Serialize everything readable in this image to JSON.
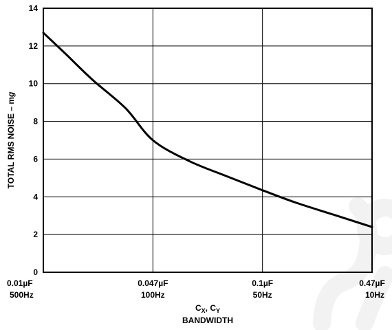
{
  "chart_data": {
    "type": "line",
    "ylabel": "TOTAL RMS NOISE – mg",
    "ylabel_main": "TOTAL RMS NOISE – m",
    "ylabel_unit": "g",
    "xlabel_line1": "C",
    "xlabel_sub1": "X",
    "xlabel_sep": ", C",
    "xlabel_sub2": "Y",
    "xlabel_line2": "BANDWIDTH",
    "ylim": [
      0,
      14
    ],
    "y_ticks": [
      "0",
      "2",
      "4",
      "6",
      "8",
      "10",
      "12",
      "14"
    ],
    "x_categories": [
      {
        "cap": "0.01µF",
        "bw": "500Hz"
      },
      {
        "cap": "0.047µF",
        "bw": "100Hz"
      },
      {
        "cap": "0.1µF",
        "bw": "50Hz"
      },
      {
        "cap": "0.47µF",
        "bw": "10Hz"
      }
    ],
    "grid": true,
    "series": [
      {
        "values": [
          {
            "x": 0.0,
            "y": 12.7
          },
          {
            "x": 0.2,
            "y": 11.6
          },
          {
            "x": 0.45,
            "y": 10.2
          },
          {
            "x": 0.75,
            "y": 8.7
          },
          {
            "x": 1.0,
            "y": 7.0
          },
          {
            "x": 1.33,
            "y": 5.9
          },
          {
            "x": 1.67,
            "y": 5.1
          },
          {
            "x": 2.0,
            "y": 4.35
          },
          {
            "x": 2.3,
            "y": 3.7
          },
          {
            "x": 2.65,
            "y": 3.05
          },
          {
            "x": 3.0,
            "y": 2.4
          }
        ],
        "color": "#000000"
      }
    ]
  }
}
